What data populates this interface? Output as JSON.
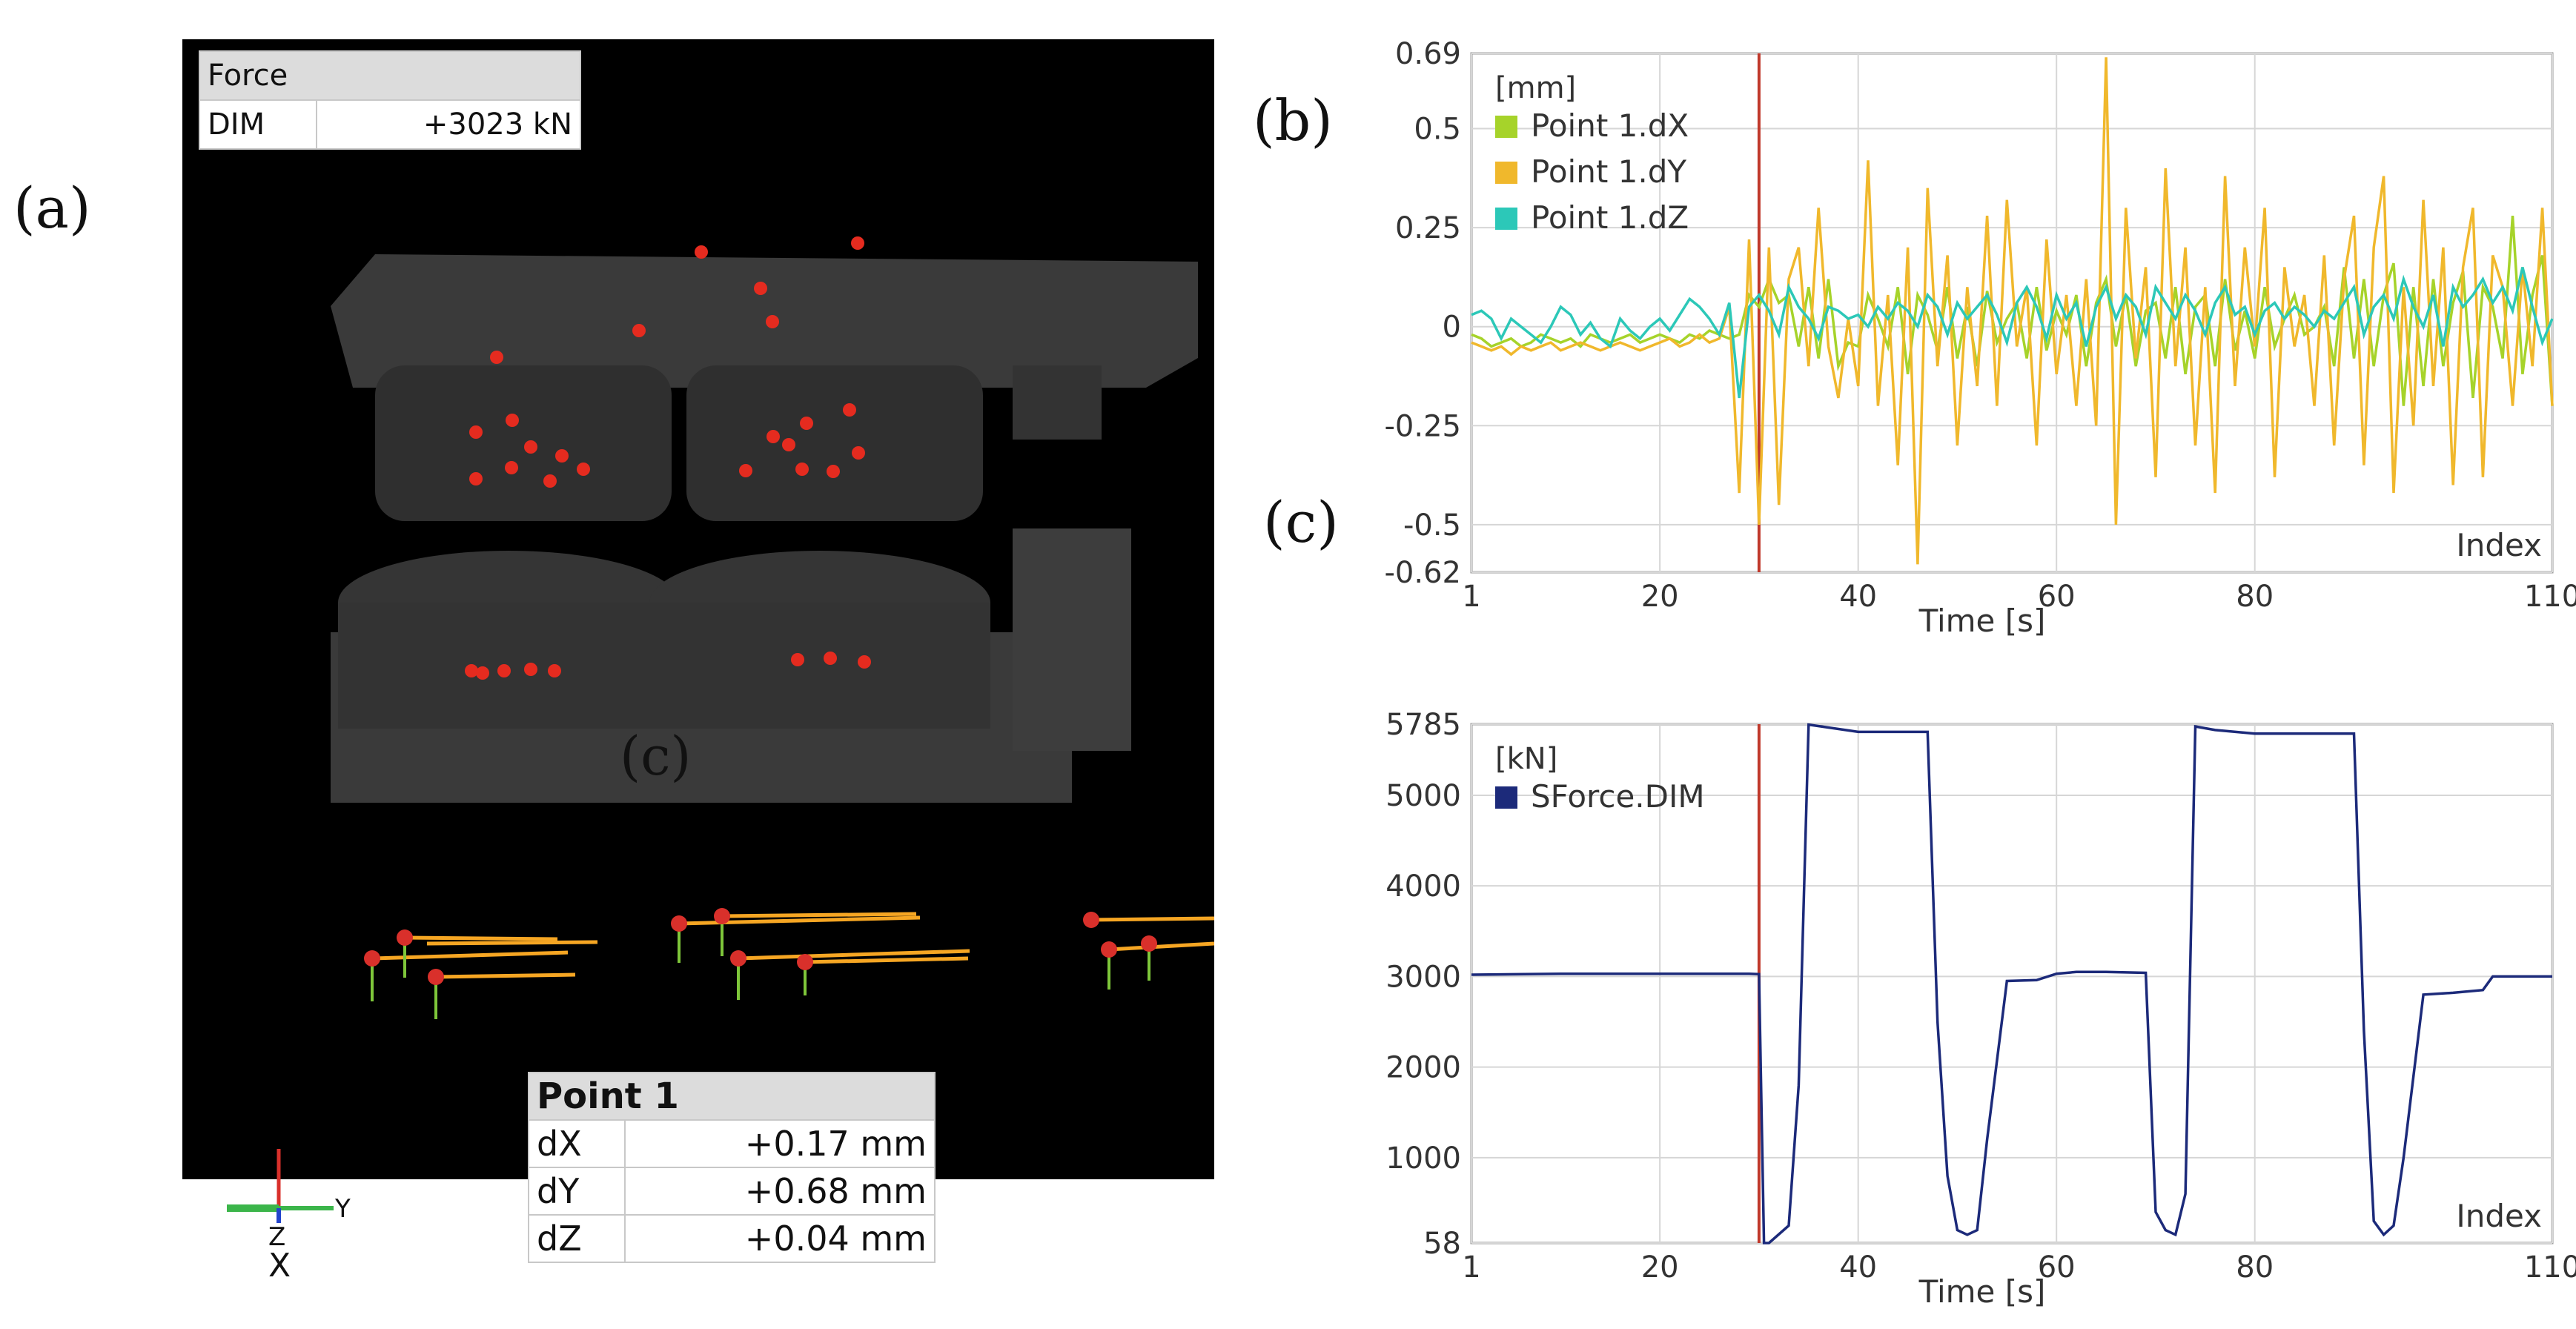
{
  "labels": {
    "a": "(a)",
    "b": "(b)",
    "c_top": "(c)",
    "c_inset": "(c)"
  },
  "force_box": {
    "title": "Force",
    "name": "DIM",
    "value": "+3023 kN"
  },
  "point_box": {
    "title": "Point 1",
    "rows": [
      {
        "name": "dX",
        "value": "+0.17 mm"
      },
      {
        "name": "dY",
        "value": "+0.68 mm"
      },
      {
        "name": "dZ",
        "value": "+0.04 mm"
      }
    ]
  },
  "axis_triad": {
    "y": "Y",
    "z": "Z",
    "x": "X"
  },
  "colors": {
    "marker": "#e52b1f",
    "die_body": "#3a3a3a",
    "vector_x": "#f6a623",
    "vector_y": "#7ec63a",
    "vector_z": "#d9302b",
    "dX": "#a6d32a",
    "dY": "#f0b82c",
    "dZ": "#2cc8b8",
    "force": "#1c2a7a",
    "marker_line": "#c0392b"
  },
  "chart_data": [
    {
      "type": "line",
      "xlabel": "Time [s]",
      "unit_label": "[mm]",
      "corner_label": "Index",
      "xlim": [
        1,
        110
      ],
      "ylim": [
        -0.62,
        0.69
      ],
      "xticks": [
        1,
        20,
        40,
        60,
        80,
        110
      ],
      "yticks": [
        0.69,
        0.5,
        0.25,
        0,
        -0.25,
        -0.5,
        -0.62
      ],
      "cursor_x": 30,
      "grid": true,
      "legend_position": "top-left",
      "series": [
        {
          "name": "Point 1.dX",
          "color": "#a6d32a",
          "values": [
            -0.02,
            -0.03,
            -0.05,
            -0.04,
            -0.03,
            -0.05,
            -0.04,
            -0.02,
            -0.03,
            -0.04,
            -0.03,
            -0.05,
            -0.02,
            -0.03,
            -0.04,
            -0.03,
            -0.02,
            -0.04,
            -0.03,
            -0.02,
            -0.03,
            -0.04,
            -0.02,
            -0.03,
            -0.01,
            -0.02,
            -0.03,
            -0.02,
            0.08,
            0.05,
            0.12,
            0.06,
            0.08,
            -0.05,
            0.1,
            -0.08,
            0.12,
            -0.1,
            -0.04,
            -0.05,
            0.08,
            0.02,
            -0.05,
            0.1,
            -0.12,
            0.08,
            0.03,
            -0.06,
            0.1,
            -0.08,
            0.05,
            -0.1,
            0.09,
            -0.04,
            0.02,
            0.06,
            -0.08,
            0.1,
            -0.06,
            0.04,
            -0.02,
            0.08,
            -0.1,
            0.06,
            0.12,
            -0.05,
            0.08,
            -0.1,
            0.04,
            0.06,
            -0.08,
            0.1,
            -0.12,
            0.05,
            0.08,
            -0.1,
            0.12,
            -0.06,
            0.04,
            -0.08,
            0.1,
            -0.05,
            0.02,
            0.08,
            -0.02,
            0.0,
            0.05,
            -0.1,
            0.15,
            -0.08,
            0.12,
            -0.1,
            0.08,
            0.16,
            -0.2,
            0.1,
            -0.15,
            0.12,
            -0.1,
            0.06,
            0.14,
            -0.18,
            0.1,
            0.05,
            -0.08,
            0.28,
            -0.12,
            0.08,
            0.18,
            -0.2
          ]
        },
        {
          "name": "Point 1.dY",
          "color": "#f0b82c",
          "values": [
            -0.04,
            -0.05,
            -0.06,
            -0.05,
            -0.07,
            -0.05,
            -0.06,
            -0.05,
            -0.04,
            -0.06,
            -0.05,
            -0.04,
            -0.05,
            -0.06,
            -0.05,
            -0.04,
            -0.05,
            -0.06,
            -0.05,
            -0.04,
            -0.03,
            -0.05,
            -0.04,
            -0.02,
            -0.04,
            -0.03,
            0.05,
            -0.42,
            0.22,
            -0.5,
            0.2,
            -0.45,
            0.12,
            0.2,
            -0.1,
            0.3,
            -0.05,
            -0.18,
            0.02,
            -0.15,
            0.42,
            -0.2,
            0.08,
            -0.35,
            0.2,
            -0.6,
            0.35,
            -0.1,
            0.18,
            -0.3,
            0.1,
            -0.15,
            0.28,
            -0.2,
            0.32,
            -0.05,
            0.1,
            -0.3,
            0.22,
            -0.12,
            0.08,
            -0.2,
            0.12,
            -0.25,
            0.68,
            -0.5,
            0.3,
            -0.08,
            0.15,
            -0.38,
            0.4,
            -0.1,
            0.2,
            -0.3,
            0.1,
            -0.42,
            0.38,
            -0.15,
            0.2,
            -0.05,
            0.3,
            -0.38,
            0.15,
            -0.05,
            0.08,
            -0.2,
            0.18,
            -0.3,
            0.12,
            0.28,
            -0.35,
            0.2,
            0.38,
            -0.42,
            0.1,
            -0.25,
            0.32,
            -0.15,
            0.2,
            -0.4,
            0.15,
            0.3,
            -0.38,
            0.18,
            0.1,
            -0.2,
            0.15,
            -0.1,
            0.3,
            -0.2
          ]
        },
        {
          "name": "Point 1.dZ",
          "color": "#2cc8b8",
          "values": [
            0.03,
            0.04,
            0.02,
            -0.03,
            0.02,
            0.0,
            -0.02,
            -0.04,
            0.0,
            0.05,
            0.03,
            -0.02,
            0.01,
            -0.03,
            -0.05,
            0.02,
            -0.01,
            -0.03,
            0.0,
            0.02,
            -0.01,
            0.03,
            0.07,
            0.05,
            0.02,
            -0.02,
            0.06,
            -0.18,
            0.05,
            0.08,
            0.04,
            -0.02,
            0.1,
            0.05,
            0.02,
            -0.03,
            0.05,
            0.04,
            0.02,
            0.03,
            0.0,
            0.05,
            0.02,
            0.06,
            0.04,
            0.0,
            0.08,
            0.05,
            -0.02,
            0.06,
            0.02,
            0.05,
            0.08,
            0.03,
            -0.04,
            0.06,
            0.1,
            0.05,
            -0.03,
            0.08,
            0.02,
            0.06,
            -0.05,
            0.05,
            0.1,
            0.02,
            0.08,
            0.05,
            -0.02,
            0.1,
            0.06,
            0.02,
            0.08,
            0.04,
            -0.02,
            0.06,
            0.1,
            0.03,
            0.05,
            -0.02,
            0.04,
            0.06,
            0.02,
            0.05,
            0.03,
            0.0,
            0.04,
            0.02,
            0.06,
            0.1,
            -0.02,
            0.05,
            0.08,
            0.02,
            0.12,
            0.05,
            0.0,
            0.08,
            -0.05,
            0.1,
            0.05,
            0.08,
            0.12,
            0.06,
            0.1,
            0.04,
            0.15,
            0.05,
            -0.04,
            0.02
          ]
        }
      ]
    },
    {
      "type": "line",
      "xlabel": "Time [s]",
      "unit_label": "[kN]",
      "corner_label": "Index",
      "xlim": [
        1,
        110
      ],
      "ylim": [
        58,
        5785
      ],
      "xticks": [
        1,
        20,
        40,
        60,
        80,
        110
      ],
      "yticks": [
        5785,
        5000,
        4000,
        3000,
        2000,
        1000,
        58
      ],
      "cursor_x": 30,
      "grid": true,
      "legend_position": "top-left",
      "series": [
        {
          "name": "SForce.DIM",
          "color": "#1c2a7a",
          "x": [
            1,
            10,
            20,
            29,
            30,
            30.5,
            31,
            33,
            34,
            35,
            40,
            47,
            48,
            49,
            50,
            51,
            52,
            53,
            55,
            58,
            60,
            62,
            65,
            69,
            70,
            71,
            72,
            73,
            74,
            76,
            80,
            90,
            91,
            92,
            93,
            94,
            95,
            97,
            100,
            103,
            104,
            110
          ],
          "values": [
            3020,
            3030,
            3030,
            3030,
            3025,
            58,
            58,
            250,
            1800,
            5780,
            5700,
            5700,
            2500,
            800,
            200,
            150,
            200,
            1200,
            2950,
            2960,
            3030,
            3050,
            3050,
            3040,
            400,
            200,
            150,
            600,
            5760,
            5720,
            5680,
            5680,
            2400,
            300,
            150,
            250,
            1000,
            2800,
            2820,
            2850,
            3000,
            3000
          ]
        }
      ]
    }
  ]
}
